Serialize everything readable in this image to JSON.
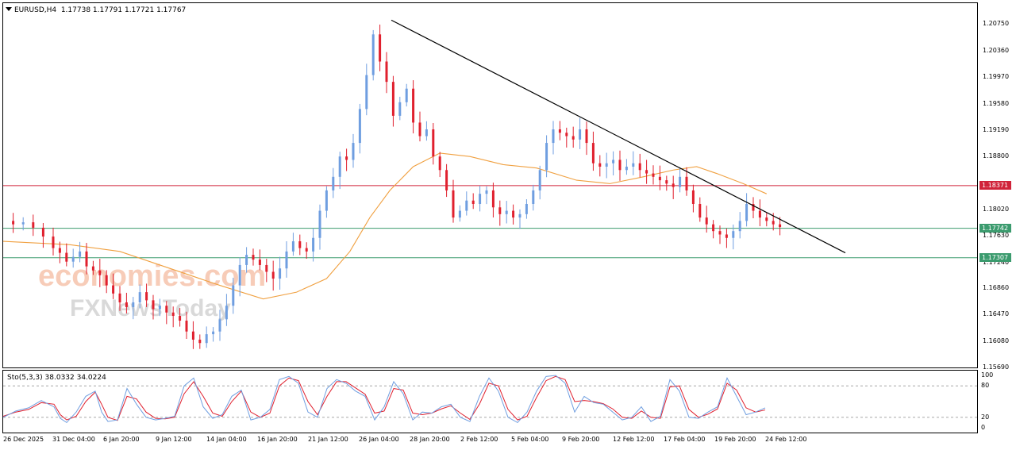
{
  "symbol_header": "EURUSD,H4  1.17738 1.17791 1.17721 1.17767",
  "stochastic_header": "Sto(5,3,3) 38.0332 34.0224",
  "watermark": {
    "top": "economies.com",
    "bottom": "FXNewsToday"
  },
  "colors": {
    "bull": "#6f9ee0",
    "bear": "#e0202e",
    "ma": "#f0a040",
    "trendline": "#000000",
    "resistance": "#d0233a",
    "support": "#3b9b6e",
    "sto_main": "#6f9ee0",
    "sto_signal": "#e0202e"
  },
  "chart_data": [
    {
      "type": "candlestick",
      "title": "EURUSD,H4",
      "ohlc_last": {
        "open": 1.17738,
        "high": 1.17791,
        "low": 1.17721,
        "close": 1.17767
      },
      "y_ticks": [
        "1.20750",
        "1.20360",
        "1.19970",
        "1.19580",
        "1.19190",
        "1.18800",
        "1.18020",
        "1.17630",
        "1.17240",
        "1.16860",
        "1.16470",
        "1.16080",
        "1.15690"
      ],
      "ylim": [
        1.1569,
        1.2106
      ],
      "x_ticks": [
        "26 Dec 2025",
        "31 Dec 04:00",
        "6 Jan 20:00",
        "9 Jan 12:00",
        "14 Jan 04:00",
        "16 Jan 20:00",
        "21 Jan 12:00",
        "26 Jan 04:00",
        "28 Jan 20:00",
        "2 Feb 12:00",
        "5 Feb 04:00",
        "9 Feb 20:00",
        "12 Feb 12:00",
        "17 Feb 04:00",
        "19 Feb 20:00",
        "24 Feb 12:00"
      ],
      "horizontal_levels": [
        {
          "label": "1.18371",
          "value": 1.18371,
          "kind": "resistance"
        },
        {
          "label": "1.17742",
          "value": 1.17742,
          "kind": "current"
        },
        {
          "label": "1.17307",
          "value": 1.17307,
          "kind": "support"
        }
      ],
      "trendline": {
        "from": {
          "x_index": 2,
          "price": 1.2081
        },
        "to": {
          "x_index": 1500,
          "price": 1.1738
        }
      },
      "close_path": [
        [
          0,
          1.1785
        ],
        [
          3,
          1.178
        ],
        [
          6,
          1.1783
        ],
        [
          9,
          1.1775
        ],
        [
          12,
          1.1762
        ],
        [
          15,
          1.1745
        ],
        [
          17,
          1.1738
        ],
        [
          19,
          1.1725
        ],
        [
          21,
          1.1732
        ],
        [
          23,
          1.174
        ],
        [
          25,
          1.1718
        ],
        [
          27,
          1.1712
        ],
        [
          29,
          1.1705
        ],
        [
          31,
          1.169
        ],
        [
          33,
          1.1678
        ],
        [
          35,
          1.1665
        ],
        [
          37,
          1.1658
        ],
        [
          39,
          1.1665
        ],
        [
          41,
          1.168
        ],
        [
          43,
          1.1668
        ],
        [
          45,
          1.1655
        ],
        [
          47,
          1.166
        ],
        [
          49,
          1.165
        ],
        [
          51,
          1.1645
        ],
        [
          53,
          1.1638
        ],
        [
          55,
          1.1622
        ],
        [
          57,
          1.161
        ],
        [
          59,
          1.1605
        ],
        [
          61,
          1.1618
        ],
        [
          63,
          1.1622
        ],
        [
          65,
          1.164
        ],
        [
          67,
          1.166
        ],
        [
          69,
          1.169
        ],
        [
          71,
          1.172
        ],
        [
          73,
          1.1735
        ],
        [
          75,
          1.1728
        ],
        [
          77,
          1.172
        ],
        [
          79,
          1.171
        ],
        [
          81,
          1.17
        ],
        [
          83,
          1.1715
        ],
        [
          85,
          1.174
        ],
        [
          87,
          1.1755
        ],
        [
          89,
          1.1745
        ],
        [
          91,
          1.174
        ],
        [
          93,
          1.176
        ],
        [
          95,
          1.18
        ],
        [
          97,
          1.183
        ],
        [
          99,
          1.185
        ],
        [
          101,
          1.188
        ],
        [
          103,
          1.1875
        ],
        [
          105,
          1.19
        ],
        [
          107,
          1.195
        ],
        [
          109,
          1.2
        ],
        [
          111,
          1.206
        ],
        [
          113,
          1.202
        ],
        [
          115,
          1.199
        ],
        [
          117,
          1.194
        ],
        [
          119,
          1.196
        ],
        [
          121,
          1.198
        ],
        [
          123,
          1.193
        ],
        [
          125,
          1.191
        ],
        [
          127,
          1.192
        ],
        [
          129,
          1.188
        ],
        [
          131,
          1.186
        ],
        [
          133,
          1.183
        ],
        [
          135,
          1.179
        ],
        [
          137,
          1.18
        ],
        [
          139,
          1.1815
        ],
        [
          141,
          1.181
        ],
        [
          143,
          1.1825
        ],
        [
          145,
          1.183
        ],
        [
          147,
          1.1805
        ],
        [
          149,
          1.1795
        ],
        [
          151,
          1.18
        ],
        [
          153,
          1.179
        ],
        [
          155,
          1.1795
        ],
        [
          157,
          1.181
        ],
        [
          159,
          1.183
        ],
        [
          161,
          1.186
        ],
        [
          163,
          1.19
        ],
        [
          165,
          1.192
        ],
        [
          167,
          1.1915
        ],
        [
          169,
          1.191
        ],
        [
          171,
          1.1905
        ],
        [
          173,
          1.192
        ],
        [
          175,
          1.19
        ],
        [
          177,
          1.187
        ],
        [
          179,
          1.1865
        ],
        [
          181,
          1.187
        ],
        [
          183,
          1.1875
        ],
        [
          185,
          1.186
        ],
        [
          187,
          1.1865
        ],
        [
          189,
          1.187
        ],
        [
          191,
          1.186
        ],
        [
          193,
          1.1855
        ],
        [
          195,
          1.185
        ],
        [
          197,
          1.1845
        ],
        [
          199,
          1.184
        ],
        [
          201,
          1.1835
        ],
        [
          203,
          1.185
        ],
        [
          205,
          1.183
        ],
        [
          207,
          1.181
        ],
        [
          209,
          1.179
        ],
        [
          211,
          1.178
        ],
        [
          213,
          1.177
        ],
        [
          215,
          1.1765
        ],
        [
          217,
          1.176
        ],
        [
          219,
          1.177
        ],
        [
          221,
          1.1785
        ],
        [
          223,
          1.181
        ],
        [
          225,
          1.18
        ],
        [
          227,
          1.179
        ],
        [
          229,
          1.1785
        ],
        [
          231,
          1.178
        ],
        [
          233,
          1.1776
        ]
      ],
      "ma_path": [
        [
          0,
          1.1755
        ],
        [
          20,
          1.175
        ],
        [
          35,
          1.174
        ],
        [
          50,
          1.1715
        ],
        [
          65,
          1.169
        ],
        [
          78,
          1.167
        ],
        [
          88,
          1.168
        ],
        [
          97,
          1.17
        ],
        [
          104,
          1.174
        ],
        [
          110,
          1.179
        ],
        [
          116,
          1.183
        ],
        [
          123,
          1.1865
        ],
        [
          131,
          1.1885
        ],
        [
          140,
          1.188
        ],
        [
          150,
          1.1868
        ],
        [
          160,
          1.1863
        ],
        [
          172,
          1.1845
        ],
        [
          182,
          1.184
        ],
        [
          192,
          1.185
        ],
        [
          201,
          1.186
        ],
        [
          208,
          1.1865
        ],
        [
          214,
          1.1855
        ],
        [
          222,
          1.184
        ],
        [
          229,
          1.1825
        ]
      ]
    },
    {
      "type": "line",
      "title": "Sto(5,3,3)",
      "values_last": {
        "main": 38.0332,
        "signal": 34.0224
      },
      "y_ticks": [
        "100",
        "80",
        "20",
        "0"
      ],
      "ylim": [
        0,
        100
      ],
      "levels": [
        80,
        20
      ],
      "main_path": [
        [
          0,
          20
        ],
        [
          4,
          32
        ],
        [
          8,
          38
        ],
        [
          12,
          52
        ],
        [
          16,
          40
        ],
        [
          18,
          18
        ],
        [
          20,
          10
        ],
        [
          23,
          30
        ],
        [
          26,
          60
        ],
        [
          29,
          70
        ],
        [
          31,
          30
        ],
        [
          33,
          12
        ],
        [
          36,
          15
        ],
        [
          39,
          75
        ],
        [
          42,
          45
        ],
        [
          45,
          20
        ],
        [
          48,
          15
        ],
        [
          51,
          18
        ],
        [
          54,
          22
        ],
        [
          57,
          80
        ],
        [
          60,
          95
        ],
        [
          63,
          40
        ],
        [
          66,
          18
        ],
        [
          69,
          25
        ],
        [
          72,
          60
        ],
        [
          75,
          72
        ],
        [
          78,
          15
        ],
        [
          81,
          20
        ],
        [
          84,
          35
        ],
        [
          87,
          92
        ],
        [
          90,
          98
        ],
        [
          93,
          85
        ],
        [
          96,
          30
        ],
        [
          99,
          20
        ],
        [
          102,
          75
        ],
        [
          105,
          92
        ],
        [
          108,
          85
        ],
        [
          111,
          70
        ],
        [
          114,
          60
        ],
        [
          117,
          15
        ],
        [
          120,
          40
        ],
        [
          123,
          88
        ],
        [
          126,
          65
        ],
        [
          129,
          15
        ],
        [
          132,
          30
        ],
        [
          135,
          28
        ],
        [
          138,
          40
        ],
        [
          141,
          45
        ],
        [
          144,
          20
        ],
        [
          147,
          12
        ],
        [
          150,
          60
        ],
        [
          153,
          95
        ],
        [
          156,
          70
        ],
        [
          159,
          20
        ],
        [
          162,
          10
        ],
        [
          165,
          30
        ],
        [
          168,
          70
        ],
        [
          171,
          98
        ],
        [
          174,
          100
        ],
        [
          177,
          85
        ],
        [
          180,
          30
        ],
        [
          183,
          60
        ],
        [
          186,
          48
        ],
        [
          189,
          45
        ],
        [
          192,
          30
        ],
        [
          195,
          15
        ],
        [
          198,
          20
        ],
        [
          201,
          40
        ],
        [
          204,
          12
        ],
        [
          207,
          22
        ],
        [
          210,
          92
        ],
        [
          213,
          70
        ],
        [
          216,
          20
        ],
        [
          219,
          18
        ],
        [
          222,
          30
        ],
        [
          225,
          40
        ],
        [
          228,
          95
        ],
        [
          231,
          60
        ],
        [
          234,
          25
        ],
        [
          237,
          30
        ],
        [
          240,
          38
        ]
      ],
      "signal_path": [
        [
          0,
          22
        ],
        [
          4,
          30
        ],
        [
          8,
          35
        ],
        [
          12,
          48
        ],
        [
          16,
          45
        ],
        [
          18,
          25
        ],
        [
          20,
          15
        ],
        [
          23,
          22
        ],
        [
          26,
          50
        ],
        [
          29,
          68
        ],
        [
          31,
          45
        ],
        [
          33,
          20
        ],
        [
          36,
          14
        ],
        [
          39,
          60
        ],
        [
          42,
          55
        ],
        [
          45,
          30
        ],
        [
          48,
          18
        ],
        [
          51,
          17
        ],
        [
          54,
          20
        ],
        [
          57,
          65
        ],
        [
          60,
          88
        ],
        [
          63,
          60
        ],
        [
          66,
          28
        ],
        [
          69,
          22
        ],
        [
          72,
          50
        ],
        [
          75,
          70
        ],
        [
          78,
          30
        ],
        [
          81,
          20
        ],
        [
          84,
          28
        ],
        [
          87,
          80
        ],
        [
          90,
          95
        ],
        [
          93,
          90
        ],
        [
          96,
          50
        ],
        [
          99,
          25
        ],
        [
          102,
          60
        ],
        [
          105,
          88
        ],
        [
          108,
          88
        ],
        [
          111,
          76
        ],
        [
          114,
          64
        ],
        [
          117,
          28
        ],
        [
          120,
          32
        ],
        [
          123,
          75
        ],
        [
          126,
          72
        ],
        [
          129,
          28
        ],
        [
          132,
          25
        ],
        [
          135,
          28
        ],
        [
          138,
          36
        ],
        [
          141,
          42
        ],
        [
          144,
          28
        ],
        [
          147,
          16
        ],
        [
          150,
          45
        ],
        [
          153,
          85
        ],
        [
          156,
          80
        ],
        [
          159,
          35
        ],
        [
          162,
          15
        ],
        [
          165,
          22
        ],
        [
          168,
          58
        ],
        [
          171,
          90
        ],
        [
          174,
          98
        ],
        [
          177,
          92
        ],
        [
          180,
          50
        ],
        [
          183,
          52
        ],
        [
          186,
          50
        ],
        [
          189,
          46
        ],
        [
          192,
          36
        ],
        [
          195,
          20
        ],
        [
          198,
          18
        ],
        [
          201,
          32
        ],
        [
          204,
          20
        ],
        [
          207,
          18
        ],
        [
          210,
          78
        ],
        [
          213,
          80
        ],
        [
          216,
          35
        ],
        [
          219,
          20
        ],
        [
          222,
          26
        ],
        [
          225,
          36
        ],
        [
          228,
          85
        ],
        [
          231,
          72
        ],
        [
          234,
          38
        ],
        [
          237,
          30
        ],
        [
          240,
          34
        ]
      ]
    }
  ]
}
